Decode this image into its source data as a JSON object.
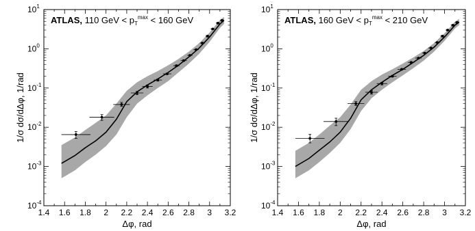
{
  "chart_data": [
    {
      "type": "line",
      "title_bold": "ATLAS,",
      "title_parts": [
        "110 GeV < p",
        "T",
        "max",
        " < 160 GeV"
      ],
      "xlabel": "Δφ, rad",
      "ylabel": "1/σ dσ/dΔφ, 1/rad",
      "xlim": [
        1.4,
        3.2
      ],
      "ylim": [
        0.0001,
        10
      ],
      "yscale": "log",
      "x_ticks": [
        "1.4",
        "1.6",
        "1.8",
        "2",
        "2.2",
        "2.4",
        "2.6",
        "2.8",
        "3",
        "3.2"
      ],
      "x_tick_values": [
        1.4,
        1.6,
        1.8,
        2.0,
        2.2,
        2.4,
        2.6,
        2.8,
        3.0,
        3.2
      ],
      "y_ticks": [
        {
          "value": 10,
          "mantissa": "10",
          "exp": "1"
        },
        {
          "value": 1,
          "mantissa": "10",
          "exp": "0"
        },
        {
          "value": 0.1,
          "mantissa": "10",
          "exp": "-1"
        },
        {
          "value": 0.01,
          "mantissa": "10",
          "exp": "-2"
        },
        {
          "value": 0.001,
          "mantissa": "10",
          "exp": "-3"
        },
        {
          "value": 0.0001,
          "mantissa": "10",
          "exp": "-4"
        }
      ],
      "points": [
        {
          "x": 1.71,
          "y": 0.0065,
          "xerr": 0.14,
          "ylo": 0.0052,
          "yhi": 0.0078
        },
        {
          "x": 1.96,
          "y": 0.018,
          "xerr": 0.12,
          "ylo": 0.015,
          "yhi": 0.021
        },
        {
          "x": 2.15,
          "y": 0.038,
          "xerr": 0.08,
          "ylo": 0.034,
          "yhi": 0.043
        },
        {
          "x": 2.3,
          "y": 0.075,
          "xerr": 0.06,
          "ylo": 0.068,
          "yhi": 0.082
        },
        {
          "x": 2.4,
          "y": 0.11,
          "xerr": 0.05,
          "ylo": 0.1,
          "yhi": 0.12
        },
        {
          "x": 2.5,
          "y": 0.16,
          "xerr": 0.04,
          "ylo": 0.15,
          "yhi": 0.17
        },
        {
          "x": 2.59,
          "y": 0.23,
          "xerr": 0.04,
          "ylo": 0.22,
          "yhi": 0.24
        },
        {
          "x": 2.68,
          "y": 0.37,
          "xerr": 0.03,
          "ylo": 0.35,
          "yhi": 0.39
        },
        {
          "x": 2.75,
          "y": 0.5,
          "xerr": 0.03,
          "ylo": 0.48,
          "yhi": 0.52
        },
        {
          "x": 2.81,
          "y": 0.68,
          "xerr": 0.025,
          "ylo": 0.66,
          "yhi": 0.7
        },
        {
          "x": 2.87,
          "y": 0.95,
          "xerr": 0.025,
          "ylo": 0.92,
          "yhi": 0.98
        },
        {
          "x": 2.93,
          "y": 1.4,
          "xerr": 0.025,
          "ylo": 1.35,
          "yhi": 1.45
        },
        {
          "x": 2.98,
          "y": 2.1,
          "xerr": 0.02,
          "ylo": 2.0,
          "yhi": 2.2
        },
        {
          "x": 3.03,
          "y": 3.2,
          "xerr": 0.02,
          "ylo": 3.1,
          "yhi": 3.3
        },
        {
          "x": 3.08,
          "y": 4.5,
          "xerr": 0.02,
          "ylo": 4.3,
          "yhi": 4.7
        },
        {
          "x": 3.12,
          "y": 5.3,
          "xerr": 0.02,
          "ylo": 5.1,
          "yhi": 5.5
        }
      ],
      "curve": {
        "x": [
          1.57,
          1.7,
          1.8,
          1.9,
          2.0,
          2.1,
          2.2,
          2.3,
          2.4,
          2.5,
          2.6,
          2.7,
          2.8,
          2.9,
          3.0,
          3.1,
          3.14
        ],
        "y": [
          0.0012,
          0.0019,
          0.003,
          0.0045,
          0.0075,
          0.016,
          0.045,
          0.08,
          0.12,
          0.17,
          0.25,
          0.38,
          0.62,
          1.05,
          2.0,
          4.3,
          5.3
        ]
      },
      "band": {
        "x": [
          1.57,
          1.7,
          1.8,
          1.9,
          2.0,
          2.1,
          2.2,
          2.3,
          2.4,
          2.5,
          2.6,
          2.7,
          2.8,
          2.9,
          3.0,
          3.1,
          3.14
        ],
        "lo": [
          0.0005,
          0.0008,
          0.0013,
          0.002,
          0.0033,
          0.0065,
          0.018,
          0.04,
          0.065,
          0.1,
          0.15,
          0.25,
          0.42,
          0.75,
          1.5,
          3.4,
          4.3
        ],
        "hi": [
          0.0035,
          0.0055,
          0.0085,
          0.013,
          0.02,
          0.04,
          0.085,
          0.14,
          0.2,
          0.27,
          0.38,
          0.55,
          0.85,
          1.4,
          2.6,
          5.4,
          6.5
        ]
      },
      "band_color": "#a8a8a8"
    },
    {
      "type": "line",
      "title_bold": "ATLAS,",
      "title_parts": [
        "160 GeV < p",
        "T",
        "max",
        " < 210 GeV"
      ],
      "xlabel": "Δφ, rad",
      "ylabel": "1/σ dσ/dΔφ, 1/rad",
      "xlim": [
        1.4,
        3.2
      ],
      "ylim": [
        0.0001,
        10
      ],
      "yscale": "log",
      "x_ticks": [
        "1.4",
        "1.6",
        "1.8",
        "2",
        "2.2",
        "2.4",
        "2.6",
        "2.8",
        "3",
        "3.2"
      ],
      "x_tick_values": [
        1.4,
        1.6,
        1.8,
        2.0,
        2.2,
        2.4,
        2.6,
        2.8,
        3.0,
        3.2
      ],
      "y_ticks": [
        {
          "value": 10,
          "mantissa": "10",
          "exp": "1"
        },
        {
          "value": 1,
          "mantissa": "10",
          "exp": "0"
        },
        {
          "value": 0.1,
          "mantissa": "10",
          "exp": "-1"
        },
        {
          "value": 0.01,
          "mantissa": "10",
          "exp": "-2"
        },
        {
          "value": 0.001,
          "mantissa": "10",
          "exp": "-3"
        },
        {
          "value": 0.0001,
          "mantissa": "10",
          "exp": "-4"
        }
      ],
      "points": [
        {
          "x": 1.71,
          "y": 0.0052,
          "xerr": 0.14,
          "ylo": 0.004,
          "yhi": 0.0066
        },
        {
          "x": 1.96,
          "y": 0.014,
          "xerr": 0.12,
          "ylo": 0.011,
          "yhi": 0.017
        },
        {
          "x": 2.15,
          "y": 0.04,
          "xerr": 0.08,
          "ylo": 0.036,
          "yhi": 0.045
        },
        {
          "x": 2.3,
          "y": 0.078,
          "xerr": 0.06,
          "ylo": 0.07,
          "yhi": 0.086
        },
        {
          "x": 2.4,
          "y": 0.13,
          "xerr": 0.05,
          "ylo": 0.12,
          "yhi": 0.14
        },
        {
          "x": 2.5,
          "y": 0.2,
          "xerr": 0.04,
          "ylo": 0.19,
          "yhi": 0.21
        },
        {
          "x": 2.59,
          "y": 0.3,
          "xerr": 0.04,
          "ylo": 0.29,
          "yhi": 0.31
        },
        {
          "x": 2.68,
          "y": 0.45,
          "xerr": 0.03,
          "ylo": 0.43,
          "yhi": 0.47
        },
        {
          "x": 2.75,
          "y": 0.58,
          "xerr": 0.03,
          "ylo": 0.56,
          "yhi": 0.6
        },
        {
          "x": 2.81,
          "y": 0.78,
          "xerr": 0.025,
          "ylo": 0.76,
          "yhi": 0.8
        },
        {
          "x": 2.87,
          "y": 1.05,
          "xerr": 0.025,
          "ylo": 1.02,
          "yhi": 1.08
        },
        {
          "x": 2.93,
          "y": 1.45,
          "xerr": 0.025,
          "ylo": 1.4,
          "yhi": 1.5
        },
        {
          "x": 2.98,
          "y": 2.1,
          "xerr": 0.02,
          "ylo": 2.0,
          "yhi": 2.2
        },
        {
          "x": 3.03,
          "y": 3.0,
          "xerr": 0.02,
          "ylo": 2.9,
          "yhi": 3.1
        },
        {
          "x": 3.08,
          "y": 4.0,
          "xerr": 0.02,
          "ylo": 3.85,
          "yhi": 4.15
        },
        {
          "x": 3.12,
          "y": 4.7,
          "xerr": 0.02,
          "ylo": 4.5,
          "yhi": 4.9
        }
      ],
      "curve": {
        "x": [
          1.57,
          1.7,
          1.8,
          1.9,
          2.0,
          2.1,
          2.2,
          2.3,
          2.4,
          2.5,
          2.6,
          2.7,
          2.8,
          2.9,
          3.0,
          3.1,
          3.14
        ],
        "y": [
          0.001,
          0.0016,
          0.0026,
          0.0042,
          0.0075,
          0.017,
          0.05,
          0.09,
          0.14,
          0.21,
          0.3,
          0.45,
          0.68,
          1.1,
          2.0,
          4.0,
          4.8
        ]
      },
      "band": {
        "x": [
          1.57,
          1.7,
          1.8,
          1.9,
          2.0,
          2.1,
          2.2,
          2.3,
          2.4,
          2.5,
          2.6,
          2.7,
          2.8,
          2.9,
          3.0,
          3.1,
          3.14
        ],
        "lo": [
          0.0005,
          0.0008,
          0.0013,
          0.0022,
          0.004,
          0.009,
          0.026,
          0.055,
          0.09,
          0.14,
          0.21,
          0.32,
          0.5,
          0.85,
          1.6,
          3.3,
          4.0
        ],
        "hi": [
          0.0025,
          0.004,
          0.0065,
          0.011,
          0.018,
          0.038,
          0.09,
          0.15,
          0.22,
          0.3,
          0.42,
          0.6,
          0.88,
          1.4,
          2.5,
          4.9,
          5.8
        ]
      },
      "band_color": "#a8a8a8"
    }
  ]
}
